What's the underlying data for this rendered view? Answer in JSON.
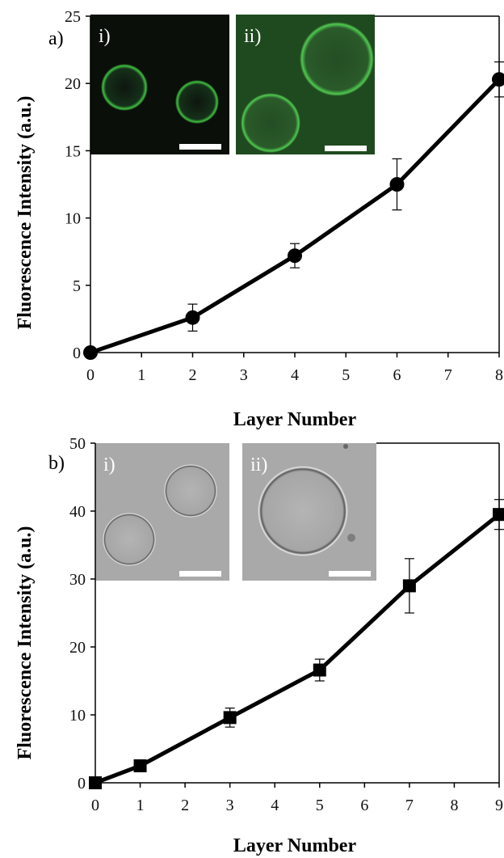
{
  "chart_data": [
    {
      "type": "line",
      "panel_label": "a)",
      "xlabel": "Layer Number",
      "ylabel": "Fluorescence Intensity (a.u.)",
      "xlim": [
        0,
        8
      ],
      "ylim": [
        0,
        25
      ],
      "xticks": [
        "0",
        "1",
        "2",
        "3",
        "4",
        "5",
        "6",
        "7",
        "8"
      ],
      "yticks": [
        "0",
        "5",
        "10",
        "15",
        "20",
        "25"
      ],
      "marker": "circle",
      "grid": false,
      "series": [
        {
          "x": [
            0,
            2,
            4,
            6,
            8
          ],
          "values": [
            0,
            2.6,
            7.2,
            12.5,
            20.3
          ],
          "errors": [
            0.1,
            1.0,
            0.9,
            1.9,
            1.3
          ]
        }
      ],
      "insets": [
        {
          "label": "i)",
          "kind": "fluorescence"
        },
        {
          "label": "ii)",
          "kind": "fluorescence"
        }
      ]
    },
    {
      "type": "line",
      "panel_label": "b)",
      "xlabel": "Layer Number",
      "ylabel": "Fluorescence Intensity (a.u.)",
      "xlim": [
        0,
        9
      ],
      "ylim": [
        0,
        50
      ],
      "xticks": [
        "0",
        "1",
        "2",
        "3",
        "4",
        "5",
        "6",
        "7",
        "8",
        "9"
      ],
      "yticks": [
        "0",
        "10",
        "20",
        "30",
        "40",
        "50"
      ],
      "marker": "square",
      "grid": false,
      "series": [
        {
          "x": [
            0,
            1,
            3,
            5,
            7,
            9
          ],
          "values": [
            0,
            2.5,
            9.6,
            16.6,
            29.0,
            39.5
          ],
          "errors": [
            0.2,
            0.5,
            1.4,
            1.6,
            4.0,
            2.2
          ]
        }
      ],
      "insets": [
        {
          "label": "i)",
          "kind": "brightfield"
        },
        {
          "label": "ii)",
          "kind": "brightfield"
        }
      ]
    }
  ],
  "colors": {
    "line": "#000000",
    "fluorescence_bg": "#0a0f0a",
    "fluorescence_ring": "#3fbf3f",
    "fluorescence_ii_bg": "#1f4a1f",
    "brightfield_bg": "#a9a9a9",
    "scale_bar": "#ffffff"
  }
}
